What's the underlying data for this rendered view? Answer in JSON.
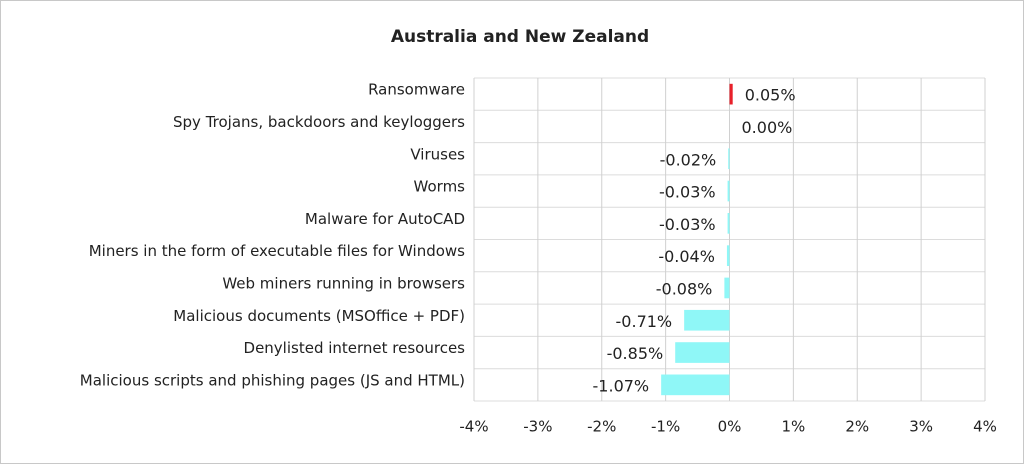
{
  "chart_data": {
    "type": "bar",
    "orientation": "horizontal",
    "title": "Australia and New Zealand",
    "categories": [
      "Ransomware",
      "Spy Trojans, backdoors and keyloggers",
      "Viruses",
      "Worms",
      "Malware for AutoCAD",
      "Miners in the form of executable files for Windows",
      "Web miners running in browsers",
      "Malicious documents (MSOffice + PDF)",
      "Denylisted internet resources",
      "Malicious scripts and phishing pages (JS and HTML)"
    ],
    "values": [
      0.05,
      0.0,
      -0.02,
      -0.03,
      -0.03,
      -0.04,
      -0.08,
      -0.71,
      -0.85,
      -1.07
    ],
    "value_labels": [
      "0.05%",
      "0.00%",
      "-0.02%",
      "-0.03%",
      "-0.03%",
      "-0.04%",
      "-0.08%",
      "-0.71%",
      "-0.85%",
      "-1.07%"
    ],
    "colors": [
      "#e8202a",
      "#8ff7f7",
      "#8ff7f7",
      "#8ff7f7",
      "#8ff7f7",
      "#8ff7f7",
      "#8ff7f7",
      "#8ff7f7",
      "#8ff7f7",
      "#8ff7f7"
    ],
    "xlim": [
      -4,
      4
    ],
    "xticks": [
      {
        "value": -4,
        "label": "-4%"
      },
      {
        "value": -3,
        "label": "-3%"
      },
      {
        "value": -2,
        "label": "-2%"
      },
      {
        "value": -1,
        "label": "-1%"
      },
      {
        "value": 0,
        "label": "0%"
      },
      {
        "value": 1,
        "label": "1%"
      },
      {
        "value": 2,
        "label": "2%"
      },
      {
        "value": 3,
        "label": "3%"
      },
      {
        "value": 4,
        "label": "4%"
      }
    ],
    "grid": true
  }
}
